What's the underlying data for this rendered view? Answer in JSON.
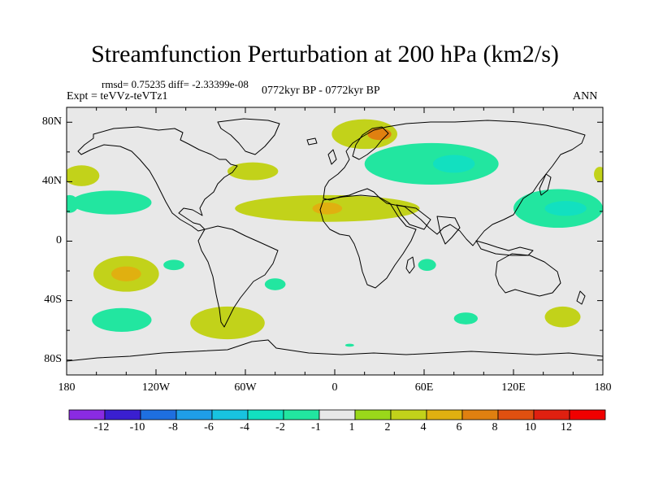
{
  "title": "Streamfunction Perturbation at 200 hPa (km2/s)",
  "stats_line": "rmsd= 0.75235 diff= -2.33399e-08",
  "experiment": "Expt = teVVz-teVTz1",
  "period": "0772kyr BP - 0772kyr BP",
  "season": "ANN",
  "lat_ticks": [
    "80N",
    "40N",
    "0",
    "40S",
    "80S"
  ],
  "lon_ticks": [
    "180",
    "120W",
    "60W",
    "0",
    "60E",
    "120E",
    "180"
  ],
  "colorbar": {
    "labels": [
      "-12",
      "-10",
      "-8",
      "-6",
      "-4",
      "-2",
      "-1",
      "1",
      "2",
      "4",
      "6",
      "8",
      "10",
      "12"
    ],
    "colors": [
      "#8a2be2",
      "#3a1fd0",
      "#1e6fe0",
      "#1f9ee8",
      "#18c3e0",
      "#12e0c0",
      "#22e6a0",
      "#e8e8e8",
      "#9ad81a",
      "#c2d21a",
      "#e0b010",
      "#e08010",
      "#e05010",
      "#e02010",
      "#f00000"
    ]
  },
  "map": {
    "lon_range": [
      -180,
      180
    ],
    "lat_range": [
      -90,
      90
    ],
    "background_color": "#e8e8e8",
    "features": [
      {
        "name": "north-atlantic-positive",
        "lon": 20,
        "lat": 72,
        "rlon": 22,
        "rlat": 10,
        "level": "2"
      },
      {
        "name": "scandinavia-core-positive",
        "lon": 30,
        "lat": 72,
        "rlon": 8,
        "rlat": 4,
        "level": "6"
      },
      {
        "name": "siberia-negative",
        "lon": 65,
        "lat": 52,
        "rlon": 45,
        "rlat": 14,
        "level": "-2"
      },
      {
        "name": "siberia-core-negative",
        "lon": 80,
        "lat": 52,
        "rlon": 14,
        "rlat": 6,
        "level": "-4"
      },
      {
        "name": "north-america-east-positive",
        "lon": -55,
        "lat": 47,
        "rlon": 17,
        "rlat": 6,
        "level": "2"
      },
      {
        "name": "north-pacific-east-positive",
        "lon": -170,
        "lat": 44,
        "rlon": 12,
        "rlat": 7,
        "level": "2"
      },
      {
        "name": "dateline-east-positive",
        "lon": 178,
        "lat": 45,
        "rlon": 4,
        "rlat": 5,
        "level": "2"
      },
      {
        "name": "pacific-subtropic-negative",
        "lon": -150,
        "lat": 26,
        "rlon": 27,
        "rlat": 8,
        "level": "-2"
      },
      {
        "name": "pacific-west-edge-negative",
        "lon": -178,
        "lat": 25,
        "rlon": 6,
        "rlat": 6,
        "level": "-2"
      },
      {
        "name": "africa-band-positive",
        "lon": -5,
        "lat": 22,
        "rlon": 62,
        "rlat": 9,
        "level": "2"
      },
      {
        "name": "sahara-core-positive",
        "lon": -5,
        "lat": 22,
        "rlon": 10,
        "rlat": 4,
        "level": "4"
      },
      {
        "name": "western-pacific-negative",
        "lon": 150,
        "lat": 22,
        "rlon": 30,
        "rlat": 13,
        "level": "-2"
      },
      {
        "name": "western-pacific-core-negative",
        "lon": 155,
        "lat": 22,
        "rlon": 14,
        "rlat": 5,
        "level": "-4"
      },
      {
        "name": "south-pacific-positive",
        "lon": -140,
        "lat": -22,
        "rlon": 22,
        "rlat": 12,
        "level": "2"
      },
      {
        "name": "south-pacific-core-positive",
        "lon": -140,
        "lat": -22,
        "rlon": 10,
        "rlat": 5,
        "level": "4"
      },
      {
        "name": "small-negative-1",
        "lon": -108,
        "lat": -16,
        "rlon": 7,
        "rlat": 3.5,
        "level": "-2"
      },
      {
        "name": "small-negative-2",
        "lon": -40,
        "lat": -29,
        "rlon": 7,
        "rlat": 4,
        "level": "-2"
      },
      {
        "name": "indian-ocean-negative",
        "lon": 62,
        "lat": -16,
        "rlon": 6,
        "rlat": 4,
        "level": "-2"
      },
      {
        "name": "south-pacific-negative",
        "lon": -143,
        "lat": -53,
        "rlon": 20,
        "rlat": 8,
        "level": "-2"
      },
      {
        "name": "south-america-positive",
        "lon": -72,
        "lat": -55,
        "rlon": 25,
        "rlat": 11,
        "level": "2"
      },
      {
        "name": "southern-ocean-negative",
        "lon": 88,
        "lat": -52,
        "rlon": 8,
        "rlat": 4,
        "level": "-2"
      },
      {
        "name": "new-zealand-positive",
        "lon": 153,
        "lat": -51,
        "rlon": 12,
        "rlat": 7,
        "level": "2"
      },
      {
        "name": "antarctic-tiny-negative",
        "lon": 10,
        "lat": -70,
        "rlon": 3,
        "rlat": 1,
        "level": "-2"
      }
    ]
  }
}
